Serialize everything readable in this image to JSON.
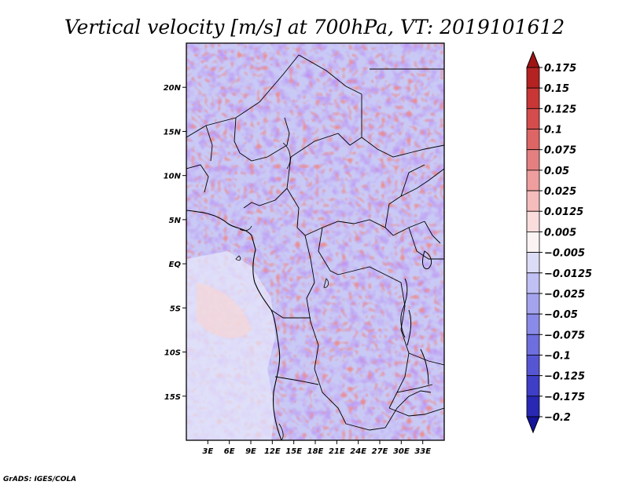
{
  "title": "Vertical velocity [m/s] at 700hPa, VT: 2019101612",
  "credit": "GrADS: IGES/COLA",
  "map": {
    "lon_range": [
      0,
      36
    ],
    "lat_range": [
      -20,
      25
    ],
    "lat_ticks": [
      {
        "value": 20,
        "label": "20N"
      },
      {
        "value": 15,
        "label": "15N"
      },
      {
        "value": 10,
        "label": "10N"
      },
      {
        "value": 5,
        "label": "5N"
      },
      {
        "value": 0,
        "label": "EQ"
      },
      {
        "value": -5,
        "label": "5S"
      },
      {
        "value": -10,
        "label": "10S"
      },
      {
        "value": -15,
        "label": "15S"
      }
    ],
    "lon_ticks": [
      {
        "value": 3,
        "label": "3E"
      },
      {
        "value": 6,
        "label": "6E"
      },
      {
        "value": 9,
        "label": "9E"
      },
      {
        "value": 12,
        "label": "12E"
      },
      {
        "value": 15,
        "label": "15E"
      },
      {
        "value": 18,
        "label": "18E"
      },
      {
        "value": 21,
        "label": "21E"
      },
      {
        "value": 24,
        "label": "24E"
      },
      {
        "value": 27,
        "label": "27E"
      },
      {
        "value": 30,
        "label": "30E"
      },
      {
        "value": 33,
        "label": "33E"
      }
    ]
  },
  "colorbar": {
    "levels": [
      "0.175",
      "0.15",
      "0.125",
      "0.1",
      "0.075",
      "0.05",
      "0.025",
      "0.0125",
      "0.005",
      "−0.005",
      "−0.0125",
      "−0.025",
      "−0.05",
      "−0.075",
      "−0.1",
      "−0.125",
      "−0.175",
      "−0.2"
    ],
    "colors": [
      "#9e1414",
      "#b52222",
      "#c83636",
      "#d44c4c",
      "#de6565",
      "#e58080",
      "#ee9e9e",
      "#f5bcbc",
      "#fadcdc",
      "#fbf3f3",
      "#dcdcf7",
      "#c0c0f4",
      "#a4a4ee",
      "#8a8ae8",
      "#6e6edf",
      "#5656d4",
      "#3e3ec7",
      "#2828b4",
      "#14149c"
    ]
  }
}
